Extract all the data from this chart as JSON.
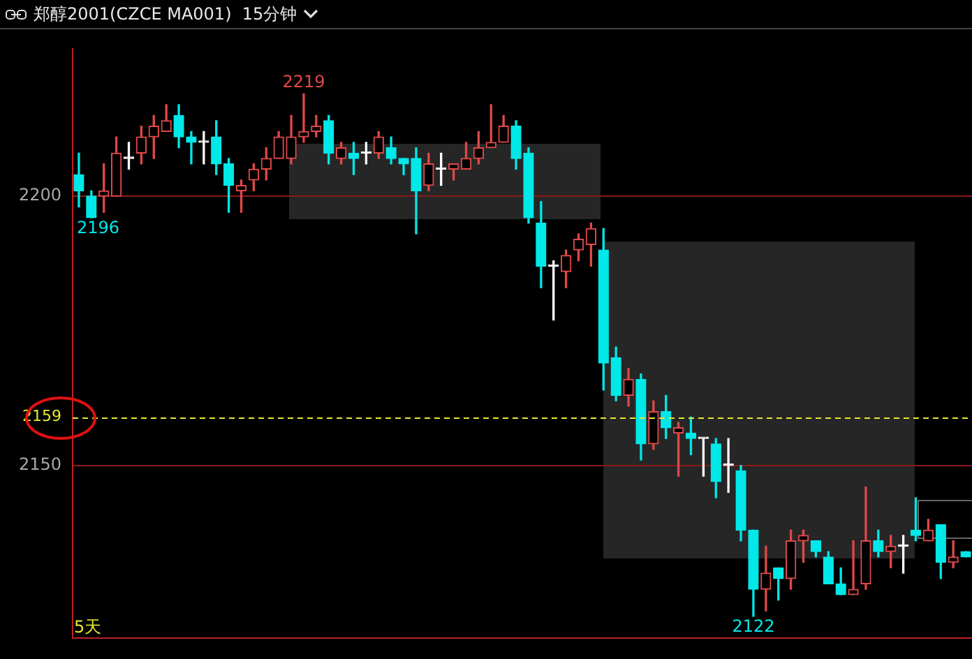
{
  "chart_data": {
    "type": "candlestick",
    "title": "郑醇2001(CZCE MA001)  15分钟",
    "categories": [
      null,
      null,
      null,
      null,
      null,
      null,
      null,
      null,
      null,
      null,
      null,
      null,
      null,
      null,
      null,
      null,
      null,
      null,
      null,
      null,
      null,
      null,
      null,
      null,
      null,
      null,
      null,
      null,
      null,
      null,
      null,
      null,
      null,
      null,
      null,
      null,
      null,
      null,
      null,
      null,
      null,
      null,
      null,
      null,
      null,
      null,
      null,
      null,
      null,
      null,
      null,
      null,
      null,
      null,
      null,
      null,
      null,
      null,
      null,
      null,
      null,
      null,
      null,
      null,
      null,
      null,
      null,
      null,
      null,
      null,
      null,
      null
    ],
    "ohlc": [
      [
        2204,
        2208,
        2198,
        2201
      ],
      [
        2200,
        2201,
        2196,
        2196
      ],
      [
        2200,
        2206,
        2197,
        2201
      ],
      [
        2200,
        2211,
        2200,
        2208
      ],
      [
        2207,
        2210,
        2205,
        2207
      ],
      [
        2208,
        2213,
        2206,
        2211
      ],
      [
        2211,
        2215,
        2207,
        2213
      ],
      [
        2212,
        2217,
        2212,
        2214
      ],
      [
        2215,
        2217,
        2209,
        2211
      ],
      [
        2211,
        2212,
        2206,
        2210
      ],
      [
        2210,
        2212,
        2206,
        2210
      ],
      [
        2211,
        2214,
        2204,
        2206
      ],
      [
        2206,
        2207,
        2197,
        2202
      ],
      [
        2201,
        2203,
        2197,
        2202
      ],
      [
        2203,
        2206,
        2201,
        2205
      ],
      [
        2205,
        2209,
        2203,
        2207
      ],
      [
        2207,
        2212,
        2207,
        2211
      ],
      [
        2207,
        2215,
        2206,
        2211
      ],
      [
        2211,
        2219,
        2210,
        2212
      ],
      [
        2212,
        2215,
        2211,
        2213
      ],
      [
        2214,
        2215,
        2206,
        2208
      ],
      [
        2207,
        2210,
        2206,
        2209
      ],
      [
        2208,
        2210,
        2204,
        2207
      ],
      [
        2208,
        2210,
        2206,
        2208
      ],
      [
        2208,
        2212,
        2207,
        2211
      ],
      [
        2209,
        2211,
        2206,
        2207
      ],
      [
        2207,
        2207,
        2204,
        2206
      ],
      [
        2207,
        2209,
        2193,
        2201
      ],
      [
        2202,
        2208,
        2201,
        2206
      ],
      [
        2205,
        2208,
        2202,
        2205
      ],
      [
        2205,
        2206,
        2203,
        2206
      ],
      [
        2205,
        2210,
        2205,
        2207
      ],
      [
        2207,
        2212,
        2206,
        2209
      ],
      [
        2209,
        2217,
        2209,
        2210
      ],
      [
        2210,
        2215,
        2210,
        2213
      ],
      [
        2213,
        2214,
        2205,
        2207
      ],
      [
        2208,
        2209,
        2195,
        2196
      ],
      [
        2195,
        2199,
        2183,
        2187
      ],
      [
        2187,
        2188,
        2177,
        2187
      ],
      [
        2186,
        2190,
        2183,
        2189
      ],
      [
        2190,
        2193,
        2188,
        2192
      ],
      [
        2191,
        2195,
        2187,
        2194
      ],
      [
        2190,
        2194,
        2164,
        2169
      ],
      [
        2170,
        2172,
        2162,
        2163
      ],
      [
        2163,
        2168,
        2161,
        2166
      ],
      [
        2166,
        2167,
        2151,
        2154
      ],
      [
        2154,
        2162,
        2153,
        2160
      ],
      [
        2160,
        2163,
        2155,
        2157
      ],
      [
        2156,
        2158,
        2148,
        2157
      ],
      [
        2156,
        2159,
        2152,
        2155
      ],
      [
        2155,
        2155,
        2148,
        2155
      ],
      [
        2154,
        2155,
        2144,
        2147
      ],
      [
        2150,
        2155,
        2145,
        2150
      ],
      [
        2149,
        2150,
        2136,
        2138
      ],
      [
        2138,
        2138,
        2122,
        2127
      ],
      [
        2127,
        2135,
        2123,
        2130
      ],
      [
        2131,
        2131,
        2125,
        2129
      ],
      [
        2129,
        2138,
        2127,
        2136
      ],
      [
        2136,
        2138,
        2132,
        2137
      ],
      [
        2136,
        2136,
        2133,
        2134
      ],
      [
        2133,
        2134,
        2128,
        2128
      ],
      [
        2128,
        2131,
        2126,
        2126
      ],
      [
        2126,
        2136,
        2126,
        2127
      ],
      [
        2128,
        2146,
        2127,
        2136
      ],
      [
        2136,
        2138,
        2133,
        2134
      ],
      [
        2134,
        2137,
        2131,
        2135
      ],
      [
        2135,
        2137,
        2130,
        2135
      ],
      [
        2138,
        2144,
        2136,
        2137
      ],
      [
        2136,
        2140,
        2136,
        2138
      ],
      [
        2139,
        2139,
        2129,
        2132
      ],
      [
        2132,
        2136,
        2131,
        2133
      ],
      [
        2134,
        2134,
        2133,
        2133
      ]
    ],
    "colors": [
      "#00e8e8",
      "#00e8e8",
      "#e04848",
      "#e04848",
      "#ffffff",
      "#e04848",
      "#e04848",
      "#e04848",
      "#00e8e8",
      "#00e8e8",
      "#ffffff",
      "#00e8e8",
      "#00e8e8",
      "#e04848",
      "#e04848",
      "#e04848",
      "#e04848",
      "#e04848",
      "#e04848",
      "#e04848",
      "#00e8e8",
      "#e04848",
      "#00e8e8",
      "#ffffff",
      "#e04848",
      "#00e8e8",
      "#00e8e8",
      "#00e8e8",
      "#e04848",
      "#ffffff",
      "#e04848",
      "#e04848",
      "#e04848",
      "#e04848",
      "#e04848",
      "#00e8e8",
      "#00e8e8",
      "#00e8e8",
      "#ffffff",
      "#e04848",
      "#e04848",
      "#e04848",
      "#00e8e8",
      "#00e8e8",
      "#e04848",
      "#00e8e8",
      "#e04848",
      "#00e8e8",
      "#e04848",
      "#00e8e8",
      "#ffffff",
      "#00e8e8",
      "#ffffff",
      "#00e8e8",
      "#00e8e8",
      "#e04848",
      "#00e8e8",
      "#e04848",
      "#e04848",
      "#00e8e8",
      "#00e8e8",
      "#00e8e8",
      "#e04848",
      "#e04848",
      "#00e8e8",
      "#e04848",
      "#ffffff",
      "#00e8e8",
      "#e04848",
      "#00e8e8",
      "#e04848",
      "#00e8e8"
    ],
    "ylim": [
      2118,
      2227.3
    ],
    "yticks": [
      2150,
      2200
    ],
    "grid": "y",
    "tick_labels": "y",
    "ref_lines": [
      {
        "axis": "y",
        "value": 2159,
        "label": "2159",
        "color": "#e8e830",
        "line_style": "dashed"
      }
    ],
    "annotations": [
      {
        "text": "2219",
        "y": 2219
      },
      {
        "text": "2196",
        "y": 2196
      },
      {
        "text": "2122",
        "y": 2122
      },
      "5天"
    ]
  }
}
